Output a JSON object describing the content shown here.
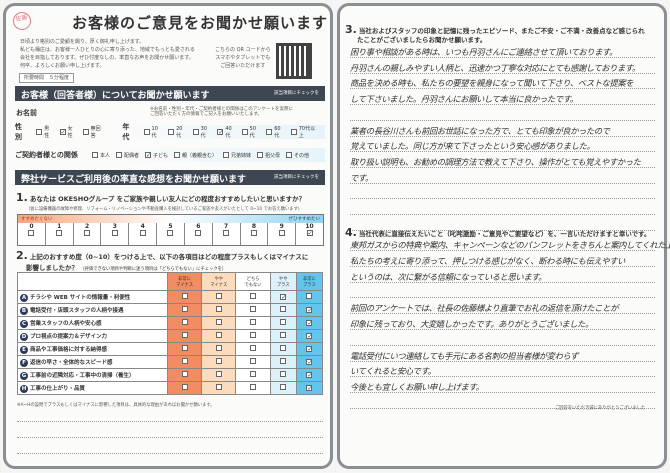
{
  "stamp": {
    "text": "佐藤",
    "color": "#e07a8a"
  },
  "header": {
    "title": "お客様のご意見をお聞かせ願います",
    "intro": [
      "日頃より格別のご愛顧を賜り、厚く御礼申し上げます。",
      "私ども桶庄は、お客様一人ひとりの心に寄り添った、地域でもっとも愛される",
      "会社を目指しております。ぜひ忖度なしの、率直なお声をお聞かせ願います。",
      "何卒、よろしくお願い申し上げます。"
    ],
    "time_required": "所要時間　５分程度",
    "qr_text": [
      "こちらの QR コードから",
      "スマホやタブレットでも",
      "ご回答いただけます"
    ]
  },
  "section1": {
    "title": "お客様（回答者様）についてお聞かせ願います",
    "hint": "該当項目にチェックを",
    "name_label": "お名前",
    "name_note": [
      "※お名前・性別・年代・ご契約者様との関係はこのアンケートを実際に",
      "ご回答いただく方の情報でご記入をお願いいたします。"
    ],
    "gender": {
      "label": "性別",
      "options": [
        "男性",
        "女性",
        "無回答"
      ],
      "checked": "女性"
    },
    "age": {
      "label": "年代",
      "options": [
        "10代",
        "20代",
        "30代",
        "40代",
        "50代",
        "60代",
        "70代以上"
      ],
      "checked": "40代"
    },
    "relation": {
      "label": "ご契約者様との関係",
      "options": [
        "本人",
        "配偶者",
        "子ども",
        "親（義親含む）",
        "兄弟姉妹",
        "祖父母",
        "その他"
      ],
      "checked": "子ども"
    }
  },
  "section2": {
    "title": "弊社サービスご利用後の率直な感想をお聞かせ願います",
    "hint": "該当項目にチェックを",
    "q1": {
      "number": "1.",
      "text": "あなたは OKESHOグループ をご家族や親しい友人にどの程度おすすめしたいと思いますか？",
      "sub": "（仮に設備機器の故障や修理、リフォーム・リノベーションや不動産購入を検討しているご家族や友人がいたとして 0~10 でお答え願います）",
      "low_label": "すすめたくない",
      "high_label": "ぜひすすめたい",
      "scale": [
        "0",
        "1",
        "2",
        "3",
        "4",
        "5",
        "6",
        "7",
        "8",
        "9",
        "10"
      ],
      "selected": "10"
    },
    "q2": {
      "number": "2.",
      "text": "上記のおすすめ度（0~10）をつける上で、以下の各項目はどの程度プラスもしくはマイナスに",
      "text2": "影響しましたか？",
      "sub": "（評価できない項目や判断に迷う項目は「どちらでもない」にチェックを）",
      "columns": [
        {
          "label": "非常に\nマイナス",
          "color": "#f28c62"
        },
        {
          "label": "やや\nマイナス",
          "color": "#fcdcbc"
        },
        {
          "label": "どちら\nでもない",
          "color": "#ffffff"
        },
        {
          "label": "やや\nプラス",
          "color": "#dcf1fa"
        },
        {
          "label": "非常に\nプラス",
          "color": "#62c6ec"
        }
      ],
      "rows": [
        {
          "letter": "A",
          "label": "チラシや WEB サイトの情報量・利便性",
          "checked": 3
        },
        {
          "letter": "B",
          "label": "電話受付・店頭スタッフの人柄や接遇",
          "checked": 4
        },
        {
          "letter": "C",
          "label": "営業スタッフの人柄や安心感",
          "checked": 4
        },
        {
          "letter": "D",
          "label": "プロ視点の提案力＆デザイン力",
          "checked": 4
        },
        {
          "letter": "E",
          "label": "商品や工事価格に対する納得感",
          "checked": 4
        },
        {
          "letter": "F",
          "label": "返信の早さ・全体的なスピード感",
          "checked": 4
        },
        {
          "letter": "G",
          "label": "工事前の近隣対応・工事中の清掃（養生）",
          "checked": 4
        },
        {
          "letter": "H",
          "label": "工事の仕上がり・品質",
          "checked": 4
        }
      ],
      "note": "※A~Hの設問でプラスもしくはマイナスに影響した項目は、具体的な理由があればお聞かせ願います。"
    }
  },
  "q3": {
    "number": "3.",
    "text": "当社およびスタッフの印象と記憶に残ったエピソード、またご不安・ご不満・改善点など感じられ",
    "text2": "たことがございましたらお聞かせ願います。",
    "answer": [
      "困り事や相談がある時は、いつも丹羽さんにご連絡させて頂いております。",
      "丹羽さんの親しみやすい人柄と、迅速かつ丁寧な対応にとても感謝しております。",
      "商品を決める時も、私たちの要望を親身になって聞いて下さり、ベストな提案を",
      "して下さいました。丹羽さんにお願いして本当に良かったです。",
      "",
      "業者の長谷川さんも前回お世話になった方で、とても印象が良かったので",
      "覚えていました。同じ方が来て下さったという安心感がありました。",
      "取り扱い説明も、お勧めの調理方法で教えて下さり、操作がとても覚えやすかった",
      "です。"
    ]
  },
  "q4": {
    "number": "4.",
    "text": "当社代表に直接伝えたいこと（叱咤激励・ご意見やご要望など）を、一言いただけますと幸いです。",
    "answer": [
      "東邦ガスからの特典や案内、キャンペーンなどのパンフレットをきちんと案内してくれた上で",
      "私たちの考えに寄り添って、押しつける感じがなく、断わる時にも伝えやすい",
      "というのは、次に繋がる信頼になっていると思います。",
      "",
      "前回のアンケートでは、社長の佐藤様より直筆でお礼の返信を頂けたことが",
      "印象に残っており、大変嬉しかったです。ありがとうございました。",
      "",
      "電話受付にいつ連絡しても手元にある名刺の担当者様が変わらず",
      "いてくれると安心です。",
      "今後とも宜しくお願い申し上げます。"
    ]
  },
  "footer": {
    "thanks": "ご回答をいただき誠にありがとうございました"
  }
}
